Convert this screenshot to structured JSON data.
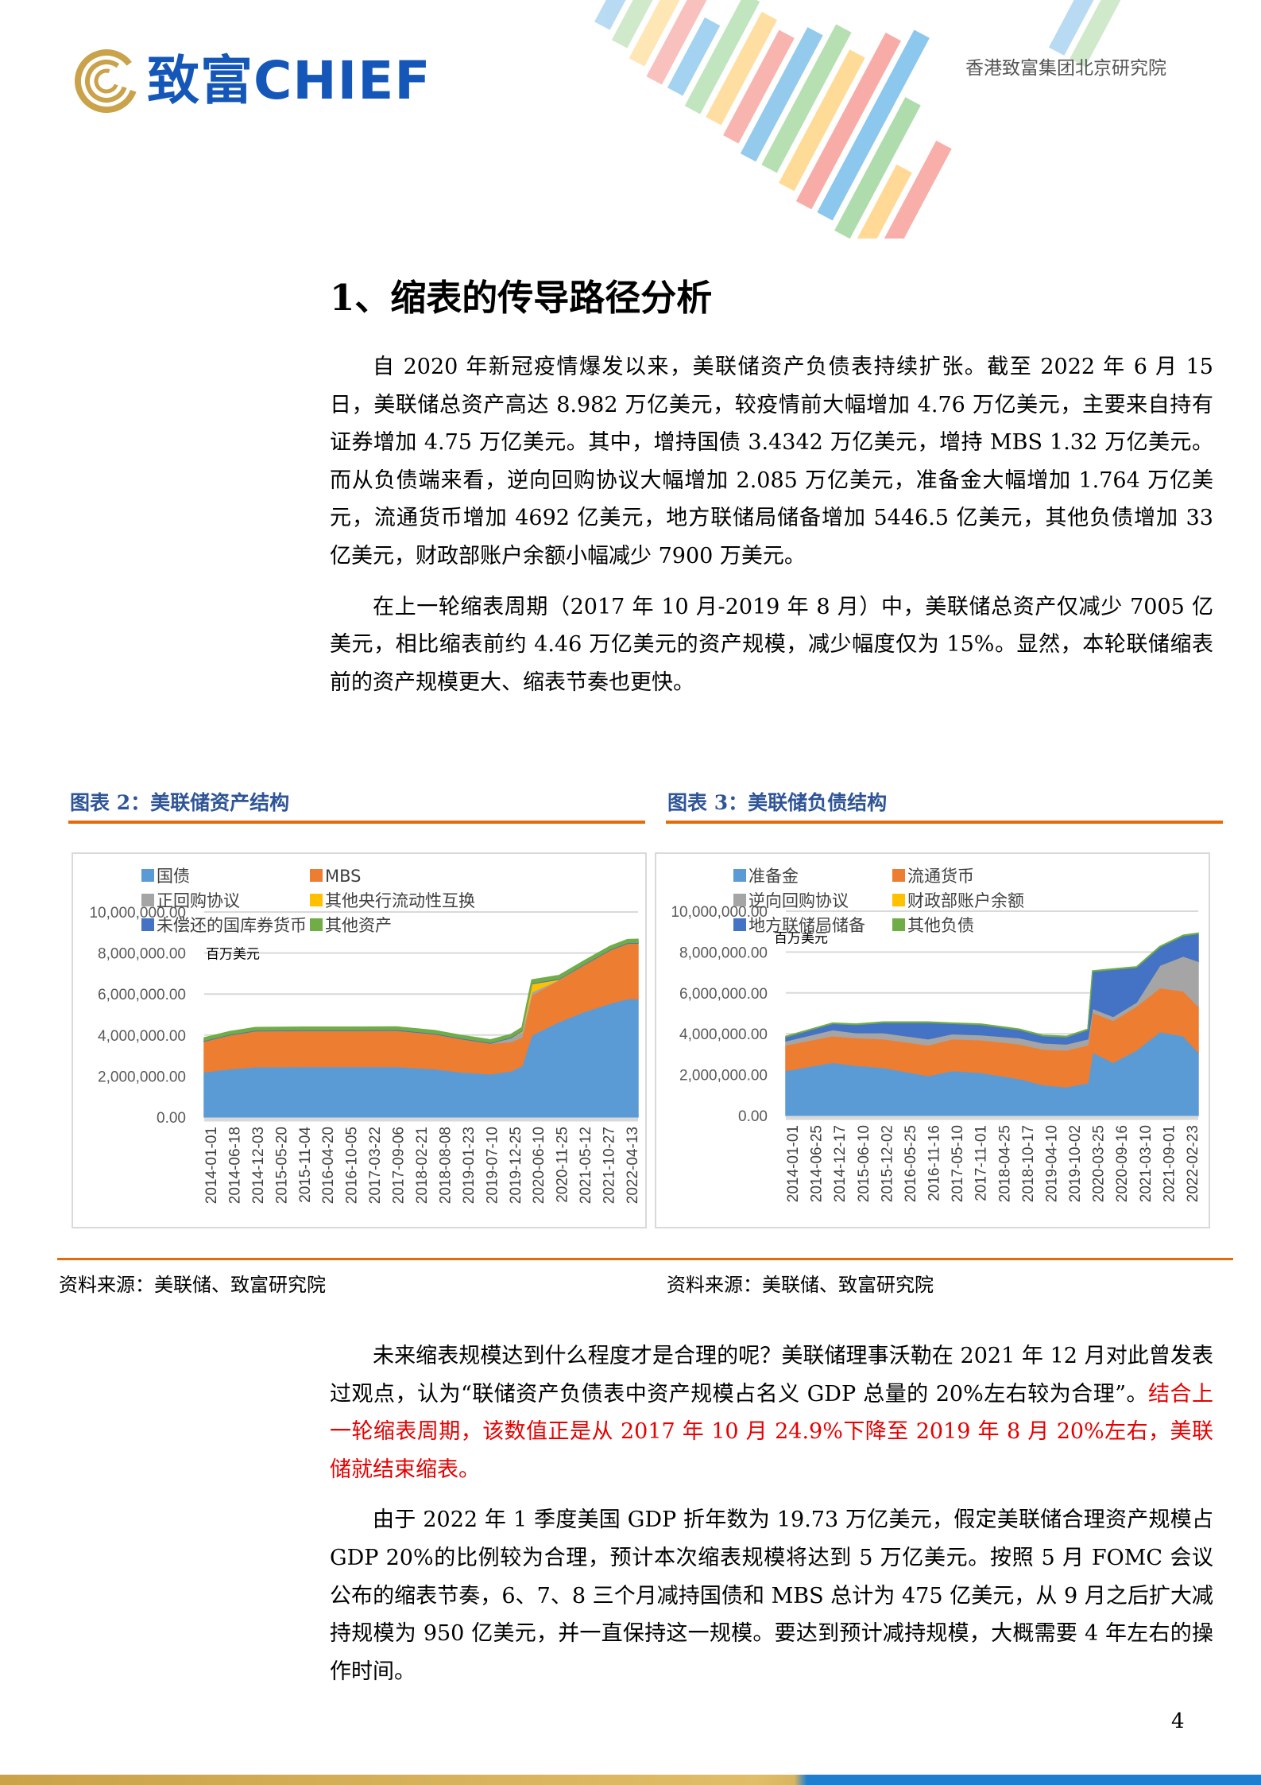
{
  "header": {
    "logo_text": "致富CHIEF",
    "institution": "香港致富集团北京研究院",
    "colors": {
      "logo_blue": "#1457b8",
      "logo_gold": "#c9a24a"
    }
  },
  "section_title": "1、缩表的传导路径分析",
  "paragraphs_top": [
    "自 2020 年新冠疫情爆发以来，美联储资产负债表持续扩张。截至 2022 年 6 月 15 日，美联储总资产高达 8.982 万亿美元，较疫情前大幅增加 4.76 万亿美元，主要来自持有证券增加 4.75 万亿美元。其中，增持国债 3.4342 万亿美元，增持 MBS 1.32 万亿美元。而从负债端来看，逆向回购协议大幅增加 2.085 万亿美元，准备金大幅增加 1.764 万亿美元，流通货币增加 4692 亿美元，地方联储局储备增加 5446.5 亿美元，其他负债增加 33 亿美元，财政部账户余额小幅减少 7900 万美元。",
    "在上一轮缩表周期（2017 年 10 月-2019 年 8 月）中，美联储总资产仅减少 7005 亿美元，相比缩表前约 4.46 万亿美元的资产规模，减少幅度仅为 15%。显然，本轮联储缩表前的资产规模更大、缩表节奏也更快。"
  ],
  "figures": [
    {
      "title": "图表 2：美联储资产结构",
      "source": "资料来源：美联储、致富研究院"
    },
    {
      "title": "图表 3：美联储负债结构",
      "source": "资料来源：美联储、致富研究院"
    }
  ],
  "paragraph3": {
    "normal": "未来缩表规模达到什么程度才是合理的呢？美联储理事沃勒在 2021 年 12 月对此曾发表过观点，认为“联储资产负债表中资产规模占名义 GDP 总量的 20%左右较为合理”。",
    "highlight": "结合上一轮缩表周期，该数值正是从 2017 年 10 月 24.9%下降至 2019 年 8 月 20%左右，美联储就结束缩表。"
  },
  "paragraph4": "由于 2022 年 1 季度美国 GDP 折年数为 19.73 万亿美元，假定美联储合理资产规模占 GDP 20%的比例较为合理，预计本次缩表规模将达到 5 万亿美元。按照 5 月 FOMC 会议公布的缩表节奏，6、7、8 三个月减持国债和 MBS 总计为 475 亿美元，从 9 月之后扩大减持规模为 950 亿美元，并一直保持这一规模。要达到预计减持规模，大概需要 4 年左右的操作时间。",
  "page_number": "4",
  "chart_data": [
    {
      "type": "area",
      "stacked": true,
      "unit_label": "百万美元",
      "ylim": [
        0,
        10000000
      ],
      "yticks": [
        "0.00",
        "2,000,000.00",
        "4,000,000.00",
        "6,000,000.00",
        "8,000,000.00",
        "10,000,000.00"
      ],
      "grid": true,
      "legend_position": "top",
      "xticks": [
        "2014-01-01",
        "2014-06-18",
        "2014-12-03",
        "2015-05-20",
        "2015-11-04",
        "2016-04-20",
        "2016-10-05",
        "2017-03-22",
        "2017-09-06",
        "2018-02-21",
        "2018-08-08",
        "2019-01-23",
        "2019-07-10",
        "2019-12-25",
        "2020-06-10",
        "2020-11-25",
        "2021-05-12",
        "2021-10-27",
        "2022-04-13"
      ],
      "x": [
        "2014-01-01",
        "2014-07-01",
        "2015-01-01",
        "2016-01-01",
        "2017-01-01",
        "2017-10-01",
        "2018-07-01",
        "2019-01-01",
        "2019-08-01",
        "2019-12-25",
        "2020-03-11",
        "2020-05-20",
        "2020-12-01",
        "2021-06-01",
        "2021-12-01",
        "2022-04-01",
        "2022-06-15"
      ],
      "series": [
        {
          "name": "国债",
          "color": "#5b9bd5",
          "values": [
            2200000,
            2350000,
            2450000,
            2460000,
            2460000,
            2460000,
            2350000,
            2200000,
            2100000,
            2250000,
            2500000,
            4000000,
            4650000,
            5150000,
            5550000,
            5770000,
            5770000
          ]
        },
        {
          "name": "MBS",
          "color": "#ed7d31",
          "values": [
            1500000,
            1650000,
            1750000,
            1760000,
            1760000,
            1770000,
            1700000,
            1620000,
            1500000,
            1420000,
            1400000,
            1950000,
            2050000,
            2300000,
            2600000,
            2700000,
            2710000
          ]
        },
        {
          "name": "正回购协议",
          "color": "#a5a5a5",
          "values": [
            0,
            0,
            0,
            0,
            0,
            0,
            0,
            0,
            0,
            200000,
            250000,
            150000,
            0,
            0,
            0,
            0,
            0
          ]
        },
        {
          "name": "其他央行流动性互换",
          "color": "#ffc000",
          "values": [
            0,
            0,
            0,
            0,
            0,
            0,
            0,
            0,
            0,
            0,
            50000,
            400000,
            20000,
            0,
            0,
            0,
            0
          ]
        },
        {
          "name": "未偿还的国库券货币",
          "color": "#4472c4",
          "values": [
            40000,
            40000,
            40000,
            40000,
            40000,
            40000,
            40000,
            40000,
            40000,
            40000,
            40000,
            40000,
            40000,
            40000,
            40000,
            40000,
            40000
          ]
        },
        {
          "name": "其他资产",
          "color": "#70ad47",
          "values": [
            130000,
            130000,
            130000,
            130000,
            130000,
            130000,
            130000,
            130000,
            130000,
            130000,
            130000,
            150000,
            150000,
            150000,
            150000,
            150000,
            150000
          ]
        }
      ]
    },
    {
      "type": "area",
      "stacked": true,
      "unit_label": "百万美元",
      "ylim": [
        0,
        10000000
      ],
      "yticks": [
        "0.00",
        "2,000,000.00",
        "4,000,000.00",
        "6,000,000.00",
        "8,000,000.00",
        "10,000,000.00"
      ],
      "grid": true,
      "legend_position": "top",
      "xticks": [
        "2014-01-01",
        "2014-06-25",
        "2014-12-17",
        "2015-06-10",
        "2015-12-02",
        "2016-05-25",
        "2016-11-16",
        "2017-05-10",
        "2017-11-01",
        "2018-04-25",
        "2018-10-17",
        "2019-04-10",
        "2019-10-02",
        "2020-03-25",
        "2020-09-16",
        "2021-03-10",
        "2021-09-01",
        "2022-02-23"
      ],
      "x": [
        "2014-01-01",
        "2014-12-17",
        "2015-06-10",
        "2016-01-01",
        "2016-12-01",
        "2017-06-01",
        "2018-01-01",
        "2018-10-17",
        "2019-04-10",
        "2019-10-02",
        "2020-03-11",
        "2020-04-15",
        "2020-09-16",
        "2021-03-10",
        "2021-09-01",
        "2022-02-23",
        "2022-06-15"
      ],
      "series": [
        {
          "name": "准备金",
          "color": "#5b9bd5",
          "values": [
            2200000,
            2600000,
            2450000,
            2350000,
            1950000,
            2200000,
            2100000,
            1800000,
            1500000,
            1400000,
            1600000,
            3100000,
            2600000,
            3200000,
            4100000,
            3900000,
            3100000
          ]
        },
        {
          "name": "流通货币",
          "color": "#ed7d31",
          "values": [
            1250000,
            1300000,
            1350000,
            1400000,
            1500000,
            1550000,
            1600000,
            1700000,
            1750000,
            1800000,
            1850000,
            1950000,
            2050000,
            2150000,
            2150000,
            2200000,
            2250000
          ]
        },
        {
          "name": "逆向回购协议",
          "color": "#a5a5a5",
          "values": [
            200000,
            300000,
            250000,
            300000,
            300000,
            250000,
            250000,
            300000,
            300000,
            300000,
            300000,
            200000,
            200000,
            200000,
            1100000,
            1700000,
            2200000
          ]
        },
        {
          "name": "财政部账户余额",
          "color": "#ffc000",
          "values": [
            0,
            0,
            0,
            0,
            0,
            0,
            0,
            0,
            0,
            0,
            0,
            0,
            0,
            0,
            0,
            0,
            0
          ]
        },
        {
          "name": "地方联储局储备",
          "color": "#4472c4",
          "values": [
            200000,
            300000,
            400000,
            500000,
            800000,
            500000,
            500000,
            400000,
            350000,
            350000,
            450000,
            1800000,
            2300000,
            1700000,
            900000,
            1000000,
            1350000
          ]
        },
        {
          "name": "其他负债",
          "color": "#70ad47",
          "values": [
            30000,
            30000,
            30000,
            30000,
            30000,
            30000,
            30000,
            30000,
            30000,
            30000,
            30000,
            30000,
            30000,
            30000,
            30000,
            30000,
            30000
          ]
        }
      ]
    }
  ]
}
